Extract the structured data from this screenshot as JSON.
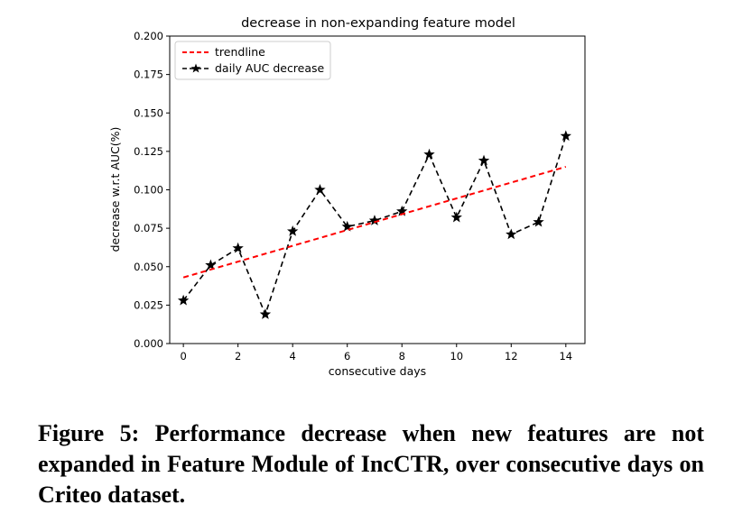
{
  "chart_data": {
    "type": "line",
    "title": "decrease in non-expanding feature model",
    "xlabel": "consecutive days",
    "ylabel": "decrease w.r.t AUC(%)",
    "xlim": [
      -0.5,
      14.7
    ],
    "ylim": [
      0.0,
      0.2
    ],
    "xticks": [
      0,
      2,
      4,
      6,
      8,
      10,
      12,
      14
    ],
    "xtick_labels": [
      "0",
      "2",
      "4",
      "6",
      "8",
      "10",
      "12",
      "14"
    ],
    "yticks": [
      0.0,
      0.025,
      0.05,
      0.075,
      0.1,
      0.125,
      0.15,
      0.175,
      0.2
    ],
    "ytick_labels": [
      "0.000",
      "0.025",
      "0.050",
      "0.075",
      "0.100",
      "0.125",
      "0.150",
      "0.175",
      "0.200"
    ],
    "grid": false,
    "legend_position": "top-left",
    "series": [
      {
        "name": "trendline",
        "color": "#ff0000",
        "style": "dashed",
        "marker": "none",
        "x": [
          0,
          14
        ],
        "y": [
          0.043,
          0.115
        ]
      },
      {
        "name": "daily AUC decrease",
        "color": "#000000",
        "style": "dashed",
        "marker": "star",
        "x": [
          0,
          1,
          2,
          3,
          4,
          5,
          6,
          7,
          8,
          9,
          10,
          11,
          12,
          13,
          14
        ],
        "y": [
          0.028,
          0.051,
          0.062,
          0.019,
          0.073,
          0.1,
          0.076,
          0.08,
          0.086,
          0.123,
          0.082,
          0.119,
          0.071,
          0.079,
          0.135
        ]
      }
    ]
  },
  "caption": "Figure 5: Performance decrease when new features are not expanded in Feature Module of IncCTR, over consecutive days on Criteo dataset."
}
